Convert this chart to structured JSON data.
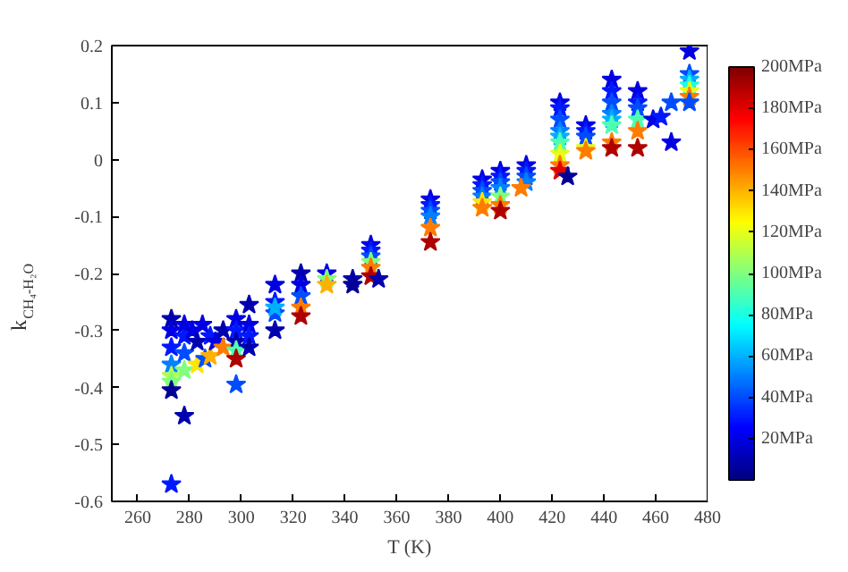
{
  "chart_data": {
    "type": "scatter",
    "xlabel": "T (K)",
    "ylabel": "k$_{CH₄-H₂O}$",
    "marker": "star",
    "grid": false,
    "xlim": [
      250,
      480
    ],
    "xticks": [
      260,
      280,
      300,
      320,
      340,
      360,
      380,
      400,
      420,
      440,
      460,
      480
    ],
    "ylim": [
      -0.6,
      0.2
    ],
    "yticks": [
      -0.6,
      -0.5,
      -0.4,
      -0.3,
      -0.2,
      -0.1,
      0,
      0.1,
      0.2
    ],
    "clim": [
      0,
      200
    ],
    "cticks": [
      {
        "value": 20,
        "label": "20MPa"
      },
      {
        "value": 40,
        "label": "40MPa"
      },
      {
        "value": 60,
        "label": "60MPa"
      },
      {
        "value": 80,
        "label": "80MPa"
      },
      {
        "value": 100,
        "label": "100MPa"
      },
      {
        "value": 120,
        "label": "120MPa"
      },
      {
        "value": 140,
        "label": "140MPa"
      },
      {
        "value": 160,
        "label": "160MPa"
      },
      {
        "value": 180,
        "label": "180MPa"
      },
      {
        "value": 200,
        "label": "200MPa"
      }
    ],
    "x": [
      273,
      273,
      273,
      273,
      273,
      273,
      273,
      273,
      278,
      278,
      278,
      278,
      278,
      281,
      283,
      283,
      285,
      286,
      288,
      288,
      290,
      293,
      293,
      298,
      298,
      298,
      298,
      298,
      298,
      303,
      303,
      303,
      303,
      313,
      313,
      313,
      313,
      313,
      323,
      323,
      323,
      323,
      323,
      333,
      333,
      333,
      343,
      343,
      350,
      350,
      350,
      350,
      350,
      350,
      353,
      373,
      373,
      373,
      373,
      373,
      373,
      393,
      393,
      393,
      393,
      393,
      393,
      400,
      400,
      400,
      400,
      400,
      400,
      400,
      410,
      410,
      410,
      410,
      408,
      423,
      423,
      423,
      423,
      423,
      423,
      423,
      423,
      423,
      426,
      433,
      433,
      433,
      433,
      433,
      443,
      443,
      443,
      443,
      443,
      443,
      443,
      443,
      453,
      453,
      453,
      453,
      453,
      453,
      459,
      462,
      466,
      466,
      473,
      473,
      473,
      473,
      473,
      473,
      473
    ],
    "values": [
      -0.28,
      -0.3,
      -0.33,
      -0.36,
      -0.38,
      -0.39,
      -0.405,
      -0.57,
      -0.45,
      -0.37,
      -0.29,
      -0.31,
      -0.34,
      -0.3,
      -0.36,
      -0.32,
      -0.29,
      -0.35,
      -0.345,
      -0.31,
      -0.32,
      -0.33,
      -0.3,
      -0.28,
      -0.3,
      -0.32,
      -0.335,
      -0.35,
      -0.395,
      -0.255,
      -0.29,
      -0.31,
      -0.33,
      -0.22,
      -0.25,
      -0.27,
      -0.3,
      -0.26,
      -0.2,
      -0.22,
      -0.24,
      -0.26,
      -0.275,
      -0.2,
      -0.21,
      -0.22,
      -0.21,
      -0.22,
      -0.15,
      -0.16,
      -0.17,
      -0.18,
      -0.19,
      -0.205,
      -0.21,
      -0.07,
      -0.08,
      -0.09,
      -0.1,
      -0.12,
      -0.145,
      -0.035,
      -0.045,
      -0.055,
      -0.065,
      -0.075,
      -0.085,
      -0.02,
      -0.03,
      -0.04,
      -0.05,
      -0.065,
      -0.08,
      -0.09,
      -0.01,
      -0.02,
      -0.03,
      -0.04,
      -0.05,
      0.1,
      0.09,
      0.07,
      0.05,
      0.04,
      0.03,
      0.01,
      -0.01,
      -0.02,
      -0.03,
      0.06,
      0.05,
      0.04,
      0.02,
      0.015,
      0.14,
      0.12,
      0.1,
      0.08,
      0.07,
      0.06,
      0.03,
      0.02,
      0.12,
      0.1,
      0.09,
      0.07,
      0.05,
      0.02,
      0.07,
      0.075,
      0.1,
      0.03,
      0.19,
      0.15,
      0.14,
      0.13,
      0.12,
      0.11,
      0.1
    ],
    "cvalues": [
      10,
      20,
      30,
      50,
      110,
      100,
      5,
      30,
      10,
      100,
      20,
      30,
      40,
      20,
      130,
      10,
      20,
      40,
      140,
      30,
      20,
      150,
      10,
      20,
      30,
      10,
      90,
      190,
      40,
      10,
      20,
      30,
      10,
      20,
      30,
      40,
      10,
      60,
      10,
      20,
      40,
      150,
      190,
      20,
      100,
      140,
      10,
      5,
      20,
      30,
      40,
      100,
      150,
      190,
      10,
      20,
      30,
      40,
      50,
      150,
      190,
      20,
      30,
      40,
      50,
      130,
      150,
      20,
      30,
      40,
      50,
      100,
      150,
      190,
      20,
      30,
      40,
      50,
      150,
      20,
      30,
      40,
      50,
      60,
      90,
      120,
      150,
      180,
      5,
      20,
      30,
      40,
      120,
      150,
      20,
      30,
      40,
      50,
      60,
      90,
      150,
      190,
      20,
      30,
      40,
      90,
      150,
      190,
      20,
      30,
      40,
      20,
      20,
      40,
      60,
      80,
      120,
      150,
      40
    ]
  }
}
